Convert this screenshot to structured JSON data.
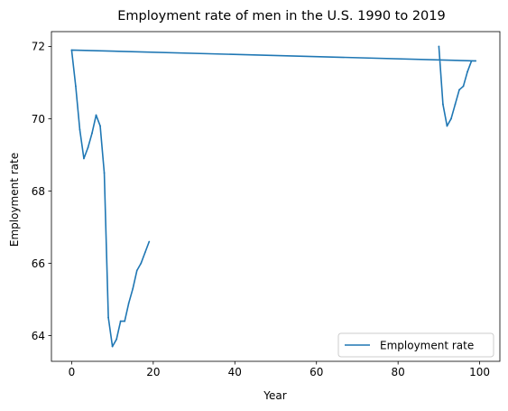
{
  "chart_data": {
    "type": "line",
    "title": "Employment rate of men in the U.S. 1990 to 2019",
    "xlabel": "Year",
    "ylabel": "Employment rate",
    "xlim": [
      -4.95,
      104.95
    ],
    "ylim": [
      63.29,
      72.41
    ],
    "xticks": [
      0,
      20,
      40,
      60,
      80,
      100
    ],
    "yticks": [
      64,
      66,
      68,
      70,
      72
    ],
    "legend_position": "lower-right",
    "grid": false,
    "series": [
      {
        "name": "Employment rate",
        "color": "#1f77b4",
        "x": [
          90,
          91,
          92,
          93,
          94,
          95,
          96,
          97,
          98,
          99,
          0,
          1,
          2,
          3,
          4,
          5,
          6,
          7,
          8,
          9,
          10,
          11,
          12,
          13,
          14,
          15,
          16,
          17,
          18,
          19
        ],
        "y": [
          72.0,
          70.4,
          69.8,
          70.0,
          70.4,
          70.8,
          70.9,
          71.3,
          71.6,
          71.6,
          71.9,
          70.9,
          69.7,
          68.9,
          69.2,
          69.6,
          70.1,
          69.8,
          68.5,
          64.5,
          63.7,
          63.9,
          64.4,
          64.4,
          64.9,
          65.3,
          65.8,
          66.0,
          66.3,
          66.6
        ]
      }
    ]
  }
}
